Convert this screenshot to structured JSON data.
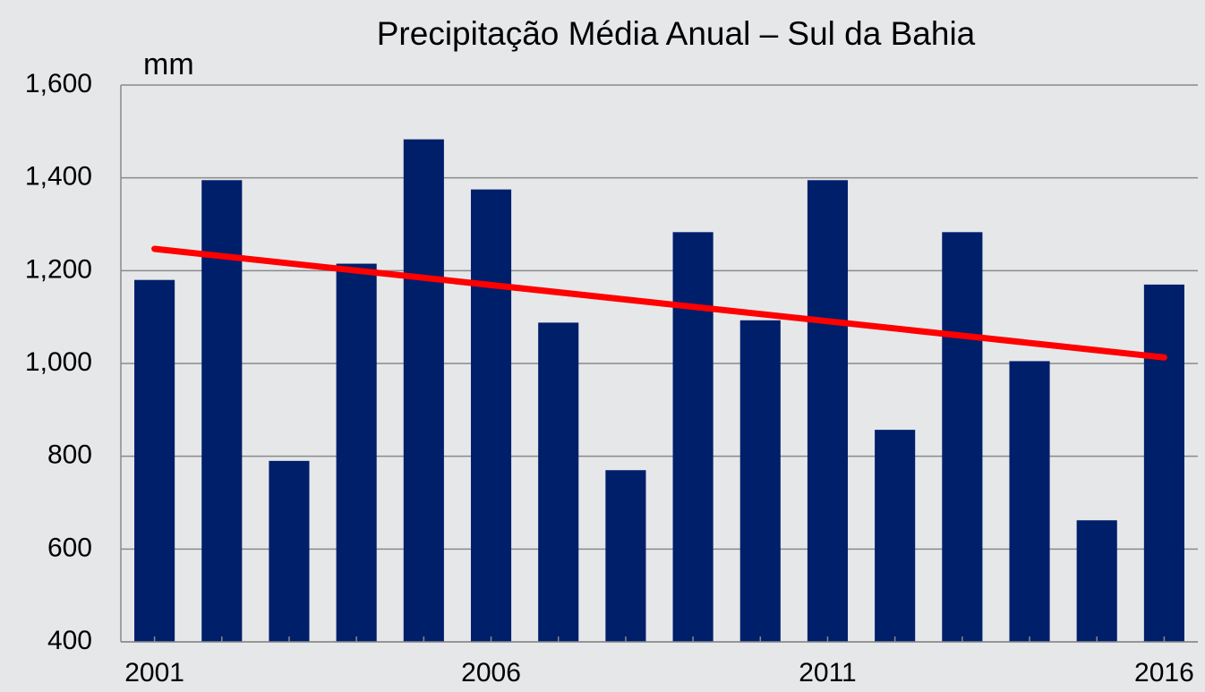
{
  "chart_data": {
    "type": "bar",
    "title": "Precipitação Média Anual – Sul da Bahia",
    "y_label": "mm",
    "categories": [
      "2001",
      null,
      null,
      null,
      null,
      "2006",
      null,
      null,
      null,
      null,
      "2011",
      null,
      null,
      null,
      null,
      "2016"
    ],
    "values": [
      1180,
      1395,
      790,
      1215,
      1483,
      1375,
      1088,
      770,
      1283,
      1093,
      1395,
      857,
      1283,
      1005,
      662,
      1170
    ],
    "color": "#001f6b",
    "trend": {
      "color": "#ff0000",
      "values": [
        1247,
        1013
      ]
    },
    "ylim": [
      400,
      1600
    ],
    "yticks": [
      400,
      600,
      800,
      {
        "value": 1000,
        "label": "1,000"
      },
      {
        "value": 1200,
        "label": "1,200"
      },
      {
        "value": 1400,
        "label": "1,400"
      },
      {
        "value": 1600,
        "label": "1,600"
      }
    ],
    "grid": true
  }
}
